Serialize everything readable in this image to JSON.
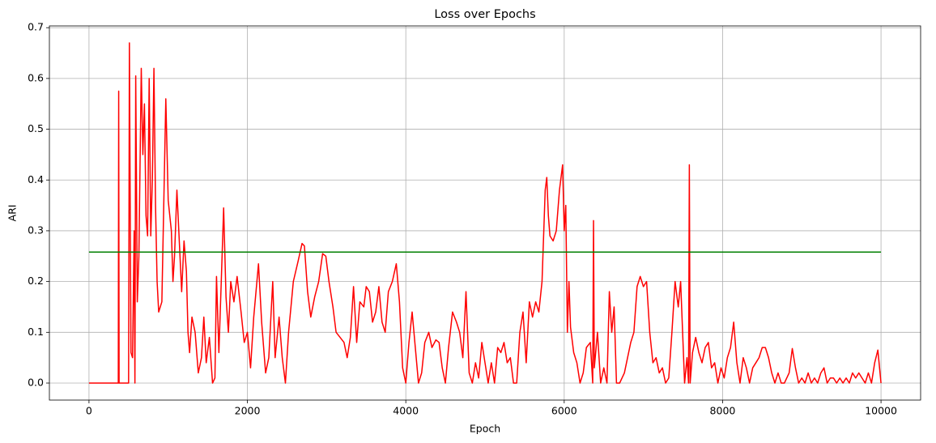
{
  "chart_data": {
    "type": "line",
    "title": "Loss over Epochs",
    "xlabel": "Epoch",
    "ylabel": "ARI",
    "grid": true,
    "xlim": [
      -500,
      10500
    ],
    "ylim": [
      -0.0335,
      0.7035
    ],
    "xticks": [
      0,
      2000,
      4000,
      6000,
      8000,
      10000
    ],
    "yticks": [
      {
        "value": 0,
        "label": "0.0"
      },
      0.1,
      0.2,
      0.3,
      0.4,
      0.5,
      0.6,
      0.7
    ],
    "series": [
      {
        "color": "#ff0000",
        "x": [
          0,
          370,
          375,
          380,
          500,
          510,
          530,
          550,
          570,
          580,
          590,
          610,
          630,
          660,
          680,
          700,
          720,
          740,
          760,
          780,
          800,
          820,
          840,
          860,
          880,
          920,
          950,
          970,
          1000,
          1040,
          1060,
          1080,
          1110,
          1140,
          1170,
          1200,
          1230,
          1250,
          1270,
          1300,
          1340,
          1380,
          1420,
          1450,
          1480,
          1520,
          1560,
          1590,
          1610,
          1640,
          1670,
          1700,
          1730,
          1760,
          1790,
          1830,
          1870,
          1920,
          1960,
          2000,
          2040,
          2080,
          2140,
          2180,
          2230,
          2270,
          2320,
          2350,
          2400,
          2440,
          2480,
          2520,
          2580,
          2640,
          2690,
          2720,
          2760,
          2800,
          2850,
          2900,
          2950,
          2990,
          3030,
          3080,
          3120,
          3170,
          3220,
          3260,
          3300,
          3340,
          3380,
          3420,
          3470,
          3500,
          3540,
          3580,
          3620,
          3660,
          3700,
          3740,
          3780,
          3830,
          3880,
          3920,
          3960,
          4000,
          4040,
          4080,
          4120,
          4160,
          4200,
          4240,
          4290,
          4330,
          4380,
          4420,
          4460,
          4500,
          4540,
          4590,
          4640,
          4680,
          4720,
          4760,
          4800,
          4840,
          4880,
          4920,
          4960,
          5000,
          5040,
          5080,
          5120,
          5160,
          5200,
          5240,
          5280,
          5320,
          5360,
          5400,
          5440,
          5480,
          5520,
          5560,
          5600,
          5640,
          5680,
          5720,
          5760,
          5780,
          5800,
          5820,
          5860,
          5900,
          5940,
          5980,
          6000,
          6020,
          6040,
          6060,
          6080,
          6120,
          6160,
          6200,
          6240,
          6280,
          6330,
          6360,
          6370,
          6380,
          6420,
          6460,
          6500,
          6540,
          6570,
          6600,
          6630,
          6660,
          6700,
          6760,
          6800,
          6840,
          6880,
          6920,
          6960,
          7000,
          7040,
          7080,
          7120,
          7160,
          7200,
          7240,
          7280,
          7320,
          7360,
          7400,
          7440,
          7470,
          7500,
          7520,
          7550,
          7570,
          7580,
          7590,
          7620,
          7660,
          7700,
          7740,
          7780,
          7820,
          7860,
          7900,
          7940,
          7980,
          8020,
          8060,
          8100,
          8140,
          8180,
          8220,
          8260,
          8300,
          8340,
          8380,
          8420,
          8460,
          8500,
          8540,
          8580,
          8620,
          8660,
          8700,
          8740,
          8780,
          8840,
          8880,
          8920,
          8960,
          9000,
          9040,
          9080,
          9120,
          9160,
          9200,
          9240,
          9280,
          9320,
          9360,
          9400,
          9440,
          9480,
          9520,
          9560,
          9600,
          9640,
          9680,
          9720,
          9760,
          9800,
          9840,
          9880,
          9920,
          9960,
          10000
        ],
        "values": [
          0,
          0,
          0.575,
          0,
          0,
          0.67,
          0.06,
          0.05,
          0.3,
          0,
          0.605,
          0.16,
          0.25,
          0.62,
          0.45,
          0.55,
          0.33,
          0.29,
          0.6,
          0.29,
          0.4,
          0.62,
          0.35,
          0.2,
          0.14,
          0.16,
          0.4,
          0.56,
          0.36,
          0.3,
          0.2,
          0.25,
          0.38,
          0.28,
          0.18,
          0.28,
          0.22,
          0.1,
          0.06,
          0.13,
          0.1,
          0.02,
          0.05,
          0.13,
          0.04,
          0.09,
          0,
          0.01,
          0.21,
          0.06,
          0.2,
          0.345,
          0.17,
          0.1,
          0.2,
          0.16,
          0.21,
          0.14,
          0.08,
          0.1,
          0.03,
          0.13,
          0.235,
          0.12,
          0.02,
          0.05,
          0.2,
          0.05,
          0.13,
          0.05,
          0,
          0.1,
          0.2,
          0.24,
          0.275,
          0.27,
          0.18,
          0.13,
          0.17,
          0.2,
          0.255,
          0.25,
          0.2,
          0.15,
          0.1,
          0.09,
          0.08,
          0.05,
          0.09,
          0.19,
          0.08,
          0.16,
          0.15,
          0.19,
          0.18,
          0.12,
          0.14,
          0.19,
          0.12,
          0.1,
          0.18,
          0.2,
          0.235,
          0.16,
          0.03,
          0,
          0.08,
          0.14,
          0.07,
          0,
          0.02,
          0.08,
          0.1,
          0.07,
          0.085,
          0.08,
          0.03,
          0,
          0.07,
          0.14,
          0.12,
          0.1,
          0.05,
          0.18,
          0.02,
          0,
          0.04,
          0.01,
          0.08,
          0.04,
          0,
          0.04,
          0,
          0.07,
          0.06,
          0.08,
          0.04,
          0.05,
          0,
          0,
          0.1,
          0.14,
          0.04,
          0.16,
          0.13,
          0.16,
          0.14,
          0.2,
          0.38,
          0.405,
          0.33,
          0.29,
          0.28,
          0.3,
          0.38,
          0.43,
          0.3,
          0.35,
          0.1,
          0.2,
          0.11,
          0.06,
          0.04,
          0,
          0.02,
          0.07,
          0.08,
          0,
          0.32,
          0.03,
          0.1,
          0,
          0.03,
          0,
          0.18,
          0.1,
          0.15,
          0,
          0,
          0.02,
          0.05,
          0.08,
          0.1,
          0.19,
          0.21,
          0.19,
          0.2,
          0.1,
          0.04,
          0.05,
          0.02,
          0.03,
          0,
          0.01,
          0.1,
          0.2,
          0.15,
          0.2,
          0.08,
          0,
          0.05,
          0,
          0.43,
          0,
          0.06,
          0.09,
          0.06,
          0.04,
          0.07,
          0.08,
          0.03,
          0.04,
          0,
          0.03,
          0.01,
          0.05,
          0.07,
          0.12,
          0.04,
          0,
          0.05,
          0.03,
          0,
          0.03,
          0.04,
          0.05,
          0.07,
          0.07,
          0.05,
          0.02,
          0,
          0.02,
          0,
          0,
          0.02,
          0.068,
          0.03,
          0,
          0.01,
          0,
          0.02,
          0,
          0.01,
          0,
          0.02,
          0.03,
          0,
          0.01,
          0.01,
          0,
          0.01,
          0,
          0.01,
          0,
          0.02,
          0.01,
          0.02,
          0.01,
          0,
          0.02,
          0,
          0.04,
          0.065,
          0
        ]
      },
      {
        "color": "#008000",
        "x": [
          0,
          10000
        ],
        "values": [
          0.258,
          0.258
        ]
      }
    ]
  }
}
